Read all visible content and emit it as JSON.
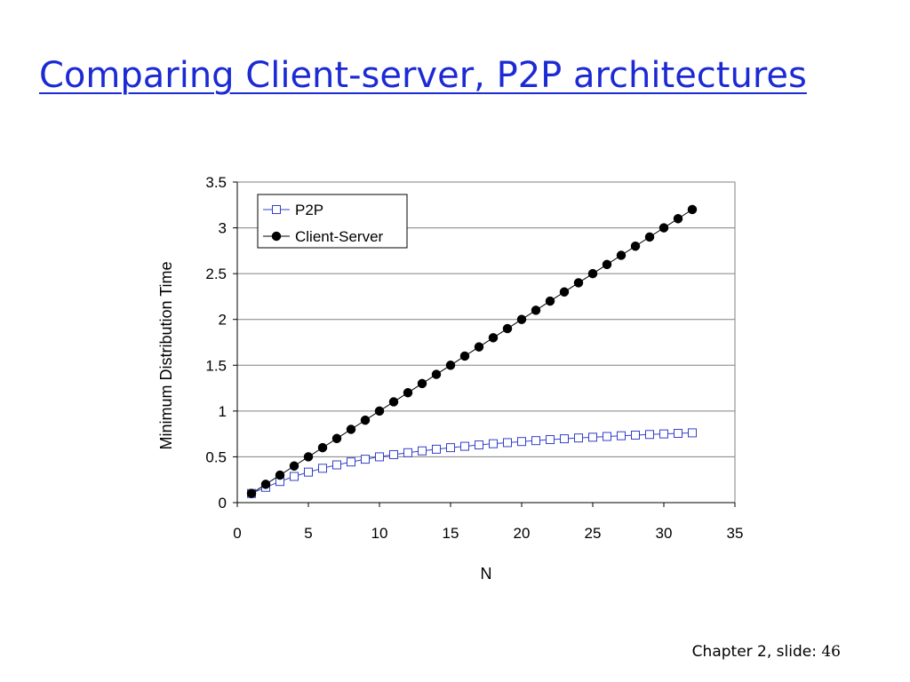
{
  "slide": {
    "title": "Comparing Client-server, P2P architectures",
    "footer_label": "Chapter 2, slide:",
    "footer_page": "46",
    "title_color": "#1c2ad4"
  },
  "chart_data": {
    "type": "line",
    "xlabel": "N",
    "ylabel": "Minimum Distribution Time",
    "xlim": [
      0,
      35
    ],
    "ylim": [
      0,
      3.5
    ],
    "xticks": [
      0,
      5,
      10,
      15,
      20,
      25,
      30,
      35
    ],
    "yticks": [
      0,
      0.5,
      1,
      1.5,
      2,
      2.5,
      3,
      3.5
    ],
    "xtick_labels": [
      "0",
      "5",
      "10",
      "15",
      "20",
      "25",
      "30",
      "35"
    ],
    "ytick_labels": [
      "0",
      "0.5",
      "1",
      "1.5",
      "2",
      "2.5",
      "3",
      "3.5"
    ],
    "grid": "horizontal",
    "legend_position": "top-left",
    "x": [
      1,
      2,
      3,
      4,
      5,
      6,
      7,
      8,
      9,
      10,
      11,
      12,
      13,
      14,
      15,
      16,
      17,
      18,
      19,
      20,
      21,
      22,
      23,
      24,
      25,
      26,
      27,
      28,
      29,
      30,
      31,
      32
    ],
    "series": [
      {
        "name": "P2P",
        "marker": "open-square",
        "color": "#3340c8",
        "values": [
          0.1,
          0.167,
          0.231,
          0.286,
          0.333,
          0.375,
          0.412,
          0.444,
          0.474,
          0.5,
          0.524,
          0.545,
          0.565,
          0.583,
          0.6,
          0.615,
          0.63,
          0.643,
          0.655,
          0.667,
          0.677,
          0.688,
          0.697,
          0.706,
          0.714,
          0.722,
          0.73,
          0.737,
          0.744,
          0.75,
          0.756,
          0.762
        ]
      },
      {
        "name": "Client-Server",
        "marker": "filled-circle",
        "color": "#000000",
        "values": [
          0.1,
          0.2,
          0.3,
          0.4,
          0.5,
          0.6,
          0.7,
          0.8,
          0.9,
          1.0,
          1.1,
          1.2,
          1.3,
          1.4,
          1.5,
          1.6,
          1.7,
          1.8,
          1.9,
          2.0,
          2.1,
          2.2,
          2.3,
          2.4,
          2.5,
          2.6,
          2.7,
          2.8,
          2.9,
          3.0,
          3.1,
          3.2
        ]
      }
    ]
  }
}
